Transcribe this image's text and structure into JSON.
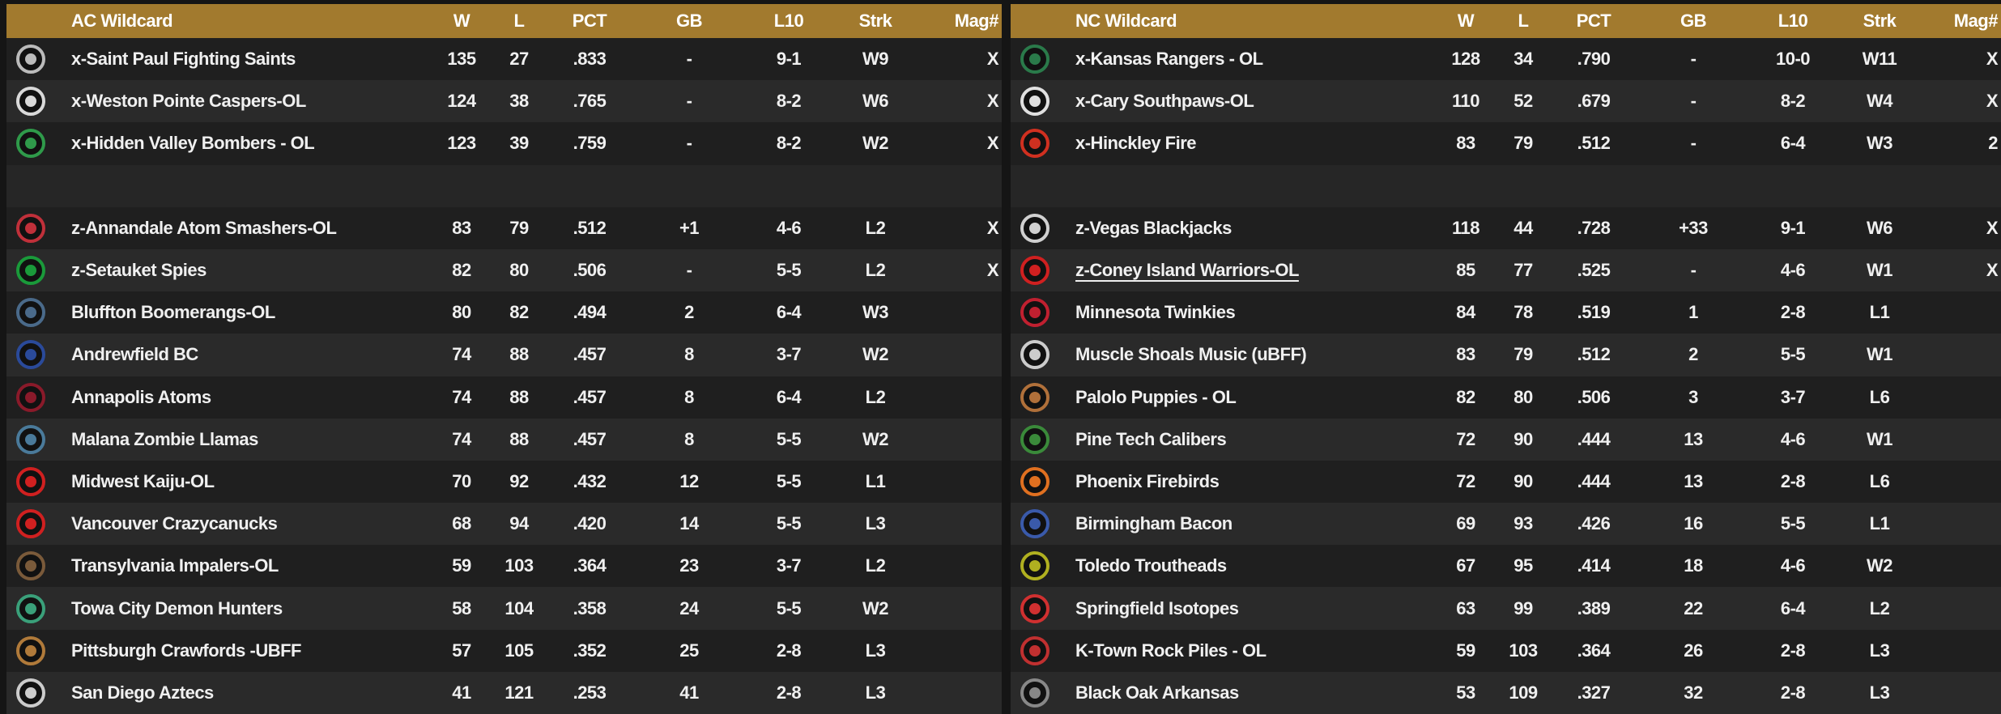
{
  "columns": {
    "w": "W",
    "l": "L",
    "pct": "PCT",
    "gb": "GB",
    "l10": "L10",
    "strk": "Strk",
    "mag": "Mag#"
  },
  "left": {
    "title": "AC  Wildcard",
    "rows": [
      {
        "team": "x-Saint Paul Fighting Saints",
        "w": "135",
        "l": "27",
        "pct": ".833",
        "gb": "-",
        "l10": "9-1",
        "strk": "W9",
        "mag": "X",
        "logo": "shield-logo-icon",
        "color": "#bbbbbb"
      },
      {
        "team": "x-Weston Pointe Caspers-OL",
        "w": "124",
        "l": "38",
        "pct": ".765",
        "gb": "-",
        "l10": "8-2",
        "strk": "W6",
        "mag": "X",
        "logo": "diamond-logo-icon",
        "color": "#d9d9d9"
      },
      {
        "team": "x-Hidden Valley Bombers - OL",
        "w": "123",
        "l": "39",
        "pct": ".759",
        "gb": "-",
        "l10": "8-2",
        "strk": "W2",
        "mag": "X",
        "logo": "bomber-logo-icon",
        "color": "#2f9a4a"
      },
      {
        "gap": true
      },
      {
        "team": "z-Annandale Atom Smashers-OL",
        "w": "83",
        "l": "79",
        "pct": ".512",
        "gb": "+1",
        "l10": "4-6",
        "strk": "L2",
        "mag": "X",
        "logo": "atom-logo-icon",
        "color": "#c0303a"
      },
      {
        "team": "z-Setauket Spies",
        "w": "82",
        "l": "80",
        "pct": ".506",
        "gb": "-",
        "l10": "5-5",
        "strk": "L2",
        "mag": "X",
        "logo": "s-logo-icon",
        "color": "#1a9a3a"
      },
      {
        "team": "Bluffton Boomerangs-OL",
        "w": "80",
        "l": "82",
        "pct": ".494",
        "gb": "2",
        "l10": "6-4",
        "strk": "W3",
        "mag": "",
        "logo": "skull-logo-icon",
        "color": "#4a6a8a"
      },
      {
        "team": "Andrewfield BC",
        "w": "74",
        "l": "88",
        "pct": ".457",
        "gb": "8",
        "l10": "3-7",
        "strk": "W2",
        "mag": "",
        "logo": "a-logo-icon",
        "color": "#2a4a9a"
      },
      {
        "team": "Annapolis Atoms",
        "w": "74",
        "l": "88",
        "pct": ".457",
        "gb": "8",
        "l10": "6-4",
        "strk": "L2",
        "mag": "",
        "logo": "atom-small-logo-icon",
        "color": "#8a1a2a"
      },
      {
        "team": "Malana Zombie Llamas",
        "w": "74",
        "l": "88",
        "pct": ".457",
        "gb": "8",
        "l10": "5-5",
        "strk": "W2",
        "mag": "",
        "logo": "mac-logo-icon",
        "color": "#4a7a9a"
      },
      {
        "team": "Midwest Kaiju-OL",
        "w": "70",
        "l": "92",
        "pct": ".432",
        "gb": "12",
        "l10": "5-5",
        "strk": "L1",
        "mag": "",
        "logo": "kaiju-logo-icon",
        "color": "#d02020"
      },
      {
        "team": "Vancouver Crazycanucks",
        "w": "68",
        "l": "94",
        "pct": ".420",
        "gb": "14",
        "l10": "5-5",
        "strk": "L3",
        "mag": "",
        "logo": "v-logo-icon",
        "color": "#d02020"
      },
      {
        "team": "Transylvania Impalers-OL",
        "w": "59",
        "l": "103",
        "pct": ".364",
        "gb": "23",
        "l10": "3-7",
        "strk": "L2",
        "mag": "",
        "logo": "impaler-logo-icon",
        "color": "#7a5a3a"
      },
      {
        "team": "Towa City Demon Hunters",
        "w": "58",
        "l": "104",
        "pct": ".358",
        "gb": "24",
        "l10": "5-5",
        "strk": "W2",
        "mag": "",
        "logo": "demon-logo-icon",
        "color": "#3aa07a"
      },
      {
        "team": "Pittsburgh Crawfords -UBFF",
        "w": "57",
        "l": "105",
        "pct": ".352",
        "gb": "25",
        "l10": "2-8",
        "strk": "L3",
        "mag": "",
        "logo": "p-logo-icon",
        "color": "#b07a3a"
      },
      {
        "team": "San Diego Aztecs",
        "w": "41",
        "l": "121",
        "pct": ".253",
        "gb": "41",
        "l10": "2-8",
        "strk": "L3",
        "mag": "",
        "logo": "horns-logo-icon",
        "color": "#cccccc"
      }
    ]
  },
  "right": {
    "title": "NC  Wildcard",
    "rows": [
      {
        "team": "x-Kansas Rangers - OL",
        "w": "128",
        "l": "34",
        "pct": ".790",
        "gb": "-",
        "l10": "10-0",
        "strk": "W11",
        "mag": "X",
        "logo": "kr-logo-icon",
        "color": "#2a7a4a"
      },
      {
        "team": "x-Cary Southpaws-OL",
        "w": "110",
        "l": "52",
        "pct": ".679",
        "gb": "-",
        "l10": "8-2",
        "strk": "W4",
        "mag": "X",
        "logo": "c-logo-icon",
        "color": "#e0e0e0"
      },
      {
        "team": "x-Hinckley Fire",
        "w": "83",
        "l": "79",
        "pct": ".512",
        "gb": "-",
        "l10": "6-4",
        "strk": "W3",
        "mag": "2",
        "logo": "fire-logo-icon",
        "color": "#d03020"
      },
      {
        "gap": true
      },
      {
        "team": "z-Vegas Blackjacks",
        "w": "118",
        "l": "44",
        "pct": ".728",
        "gb": "+33",
        "l10": "9-1",
        "strk": "W6",
        "mag": "X",
        "logo": "v-diamond-logo-icon",
        "color": "#d0d0d0"
      },
      {
        "team": "z-Coney Island Warriors-OL",
        "w": "85",
        "l": "77",
        "pct": ".525",
        "gb": "-",
        "l10": "4-6",
        "strk": "W1",
        "mag": "X",
        "logo": "c-block-logo-icon",
        "color": "#d02020",
        "underline": true
      },
      {
        "team": "Minnesota Twinkies",
        "w": "84",
        "l": "78",
        "pct": ".519",
        "gb": "1",
        "l10": "2-8",
        "strk": "L1",
        "mag": "",
        "logo": "tc-logo-icon",
        "color": "#c02030"
      },
      {
        "team": "Muscle Shoals Music (uBFF)",
        "w": "83",
        "l": "79",
        "pct": ".512",
        "gb": "2",
        "l10": "5-5",
        "strk": "W1",
        "mag": "",
        "logo": "music-logo-icon",
        "color": "#cccccc"
      },
      {
        "team": "Palolo Puppies - OL",
        "w": "82",
        "l": "80",
        "pct": ".506",
        "gb": "3",
        "l10": "3-7",
        "strk": "L6",
        "mag": "",
        "logo": "puppy-logo-icon",
        "color": "#b0703a"
      },
      {
        "team": "Pine Tech Calibers",
        "w": "72",
        "l": "90",
        "pct": ".444",
        "gb": "13",
        "l10": "4-6",
        "strk": "W1",
        "mag": "",
        "logo": "pine-logo-icon",
        "color": "#3a8a3a"
      },
      {
        "team": "Phoenix Firebirds",
        "w": "72",
        "l": "90",
        "pct": ".444",
        "gb": "13",
        "l10": "2-8",
        "strk": "L6",
        "mag": "",
        "logo": "firebird-logo-icon",
        "color": "#e07020"
      },
      {
        "team": "Birmingham Bacon",
        "w": "69",
        "l": "93",
        "pct": ".426",
        "gb": "16",
        "l10": "5-5",
        "strk": "L1",
        "mag": "",
        "logo": "bacon-logo-icon",
        "color": "#3a5aaa"
      },
      {
        "team": "Toledo Troutheads",
        "w": "67",
        "l": "95",
        "pct": ".414",
        "gb": "18",
        "l10": "4-6",
        "strk": "W2",
        "mag": "",
        "logo": "trout-logo-icon",
        "color": "#b0b020"
      },
      {
        "team": "Springfield Isotopes",
        "w": "63",
        "l": "99",
        "pct": ".389",
        "gb": "22",
        "l10": "6-4",
        "strk": "L2",
        "mag": "",
        "logo": "baseball-logo-icon",
        "color": "#d03030"
      },
      {
        "team": "K-Town Rock Piles - OL",
        "w": "59",
        "l": "103",
        "pct": ".364",
        "gb": "26",
        "l10": "2-8",
        "strk": "L3",
        "mag": "",
        "logo": "rock-logo-icon",
        "color": "#c03030"
      },
      {
        "team": "Black Oak Arkansas",
        "w": "53",
        "l": "109",
        "pct": ".327",
        "gb": "32",
        "l10": "2-8",
        "strk": "L3",
        "mag": "",
        "logo": "boa-logo-icon",
        "color": "#888888"
      }
    ]
  }
}
